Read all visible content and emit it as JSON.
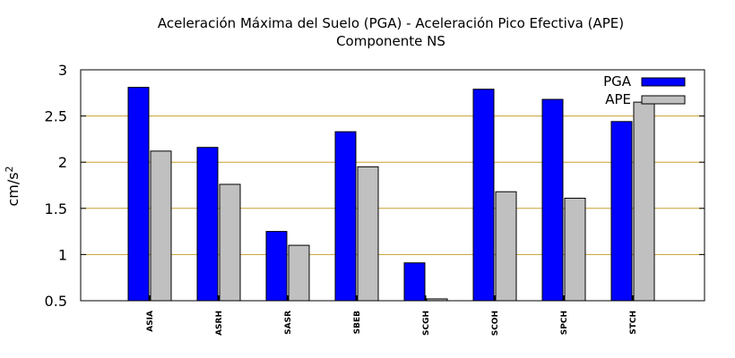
{
  "chart_data": {
    "type": "bar",
    "title": "Aceleración Máxima del Suelo (PGA) -  Aceleración Pico Efectiva (APE)",
    "subtitle": "Componente NS",
    "ylabel": "cm/s",
    "ylabel_sup": "2",
    "ylim": [
      0.5,
      3
    ],
    "yticks": [
      0.5,
      1,
      1.5,
      2,
      2.5,
      3
    ],
    "ytick_labels": [
      "0.5",
      "1",
      "1.5",
      "2",
      "2.5",
      "3"
    ],
    "grid": true,
    "legend_position": "top-right",
    "categories": [
      "ASIA",
      "ASRH",
      "SASR",
      "SBEB",
      "SCGH",
      "SCOH",
      "SPCH",
      "STCH"
    ],
    "series": [
      {
        "name": "PGA",
        "color": "#0000ff",
        "values": [
          2.81,
          2.16,
          1.25,
          2.33,
          0.91,
          2.79,
          2.68,
          2.44
        ]
      },
      {
        "name": "APE",
        "color": "#c0c0c0",
        "values": [
          2.12,
          1.76,
          1.1,
          1.95,
          0.52,
          1.68,
          1.61,
          2.65
        ]
      }
    ],
    "grid_color": "#c8a030"
  }
}
